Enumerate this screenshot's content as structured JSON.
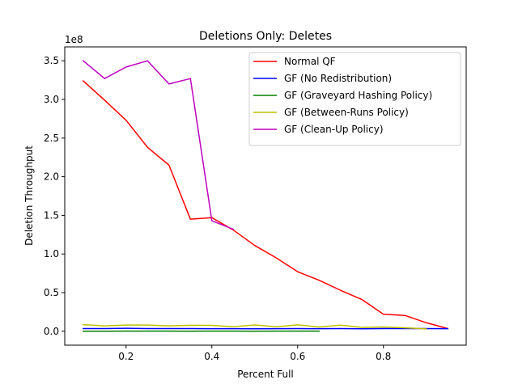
{
  "chart_data": {
    "type": "line",
    "title": "Deletions Only: Deletes",
    "xlabel": "Percent Full",
    "ylabel": "Deletion Throughput",
    "offset_text": "1e8",
    "xlim": [
      0.057,
      0.993
    ],
    "ylim": [
      -18000000.0,
      368000000.0
    ],
    "x_ticks": [
      0.2,
      0.4,
      0.6,
      0.8
    ],
    "x_tick_labels": [
      "0.2",
      "0.4",
      "0.6",
      "0.8"
    ],
    "y_ticks": [
      0,
      50000000,
      100000000,
      150000000,
      200000000,
      250000000,
      300000000,
      350000000
    ],
    "y_tick_labels": [
      "0.0",
      "0.5",
      "1.0",
      "1.5",
      "2.0",
      "2.5",
      "3.0",
      "3.5"
    ],
    "grid": false,
    "legend_position": "top-right",
    "series": [
      {
        "name": "Normal QF",
        "color": "#ff0000",
        "x": [
          0.1,
          0.15,
          0.2,
          0.25,
          0.3,
          0.35,
          0.4,
          0.45,
          0.5,
          0.55,
          0.6,
          0.65,
          0.7,
          0.75,
          0.8,
          0.85,
          0.9,
          0.95
        ],
        "y": [
          324000000,
          299000000,
          273000000,
          238000000,
          215000000,
          145000000,
          147000000,
          131000000,
          111000000,
          95000000,
          77000000,
          66000000,
          53000000,
          41000000,
          22000000,
          20500000,
          11000000,
          3500000
        ]
      },
      {
        "name": "GF (No Redistribution)",
        "color": "#0000ff",
        "x": [
          0.1,
          0.15,
          0.2,
          0.25,
          0.3,
          0.35,
          0.4,
          0.45,
          0.5,
          0.55,
          0.6,
          0.65,
          0.7,
          0.75,
          0.8,
          0.85,
          0.9,
          0.95
        ],
        "y": [
          3500000,
          3500000,
          3800000,
          3500000,
          3500000,
          3400000,
          3300000,
          3300000,
          3200000,
          3300000,
          3400000,
          3300000,
          3400000,
          3200000,
          3500000,
          3400000,
          3400000,
          3300000
        ]
      },
      {
        "name": "GF (Graveyard Hashing Policy)",
        "color": "#008000",
        "x": [
          0.1,
          0.15,
          0.2,
          0.25,
          0.3,
          0.35,
          0.4,
          0.45,
          0.5,
          0.55,
          0.6,
          0.65
        ],
        "y": [
          0,
          0,
          200000,
          200000,
          200000,
          100000,
          200000,
          200000,
          100000,
          200000,
          200000,
          200000
        ]
      },
      {
        "name": "GF (Between-Runs Policy)",
        "color": "#bfbf00",
        "x": [
          0.1,
          0.15,
          0.2,
          0.25,
          0.3,
          0.35,
          0.4,
          0.45,
          0.5,
          0.55,
          0.6,
          0.65,
          0.7,
          0.75,
          0.8,
          0.85,
          0.9
        ],
        "y": [
          8500000,
          7000000,
          8000000,
          8000000,
          7000000,
          7800000,
          7600000,
          5800000,
          8200000,
          5800000,
          8300000,
          5500000,
          7900000,
          5000000,
          5500000,
          4500000,
          3000000
        ]
      },
      {
        "name": "GF (Clean-Up Policy)",
        "color": "#bf00bf",
        "x": [
          0.1,
          0.15,
          0.2,
          0.25,
          0.3,
          0.35,
          0.4,
          0.45
        ],
        "y": [
          350000000,
          327000000,
          342000000,
          350000000,
          320000000,
          327000000,
          143000000,
          132000000
        ]
      }
    ]
  }
}
